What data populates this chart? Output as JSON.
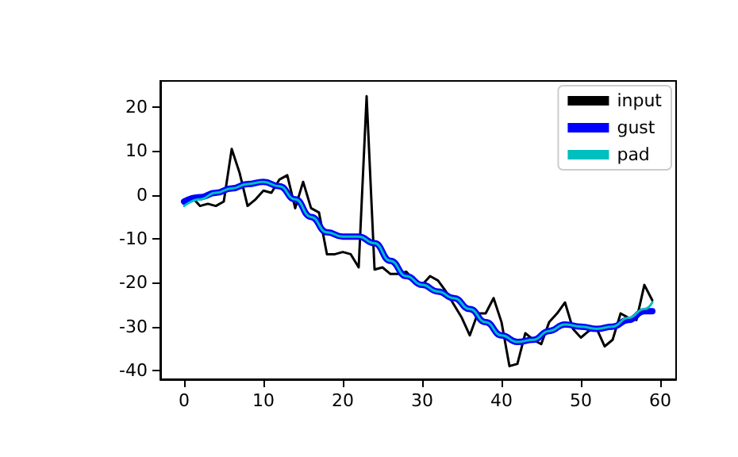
{
  "chart_data": {
    "type": "line",
    "x": [
      0,
      1,
      2,
      3,
      4,
      5,
      6,
      7,
      8,
      9,
      10,
      11,
      12,
      13,
      14,
      15,
      16,
      17,
      18,
      19,
      20,
      21,
      22,
      23,
      24,
      25,
      26,
      27,
      28,
      29,
      30,
      31,
      32,
      33,
      34,
      35,
      36,
      37,
      38,
      39,
      40,
      41,
      42,
      43,
      44,
      45,
      46,
      47,
      48,
      49,
      50,
      51,
      52,
      53,
      54,
      55,
      56,
      57,
      58,
      59
    ],
    "series": [
      {
        "name": "input",
        "color": "#000000",
        "values": [
          -1.5,
          -0.5,
          -2.5,
          -2,
          -2.5,
          -1.5,
          10.5,
          5,
          -2.5,
          -1,
          1,
          0.5,
          3.5,
          4.5,
          -3,
          3,
          -3,
          -4,
          -13.5,
          -13.5,
          -13,
          -13.5,
          -16.5,
          22.5,
          -17,
          -16.5,
          -18,
          -18,
          -17.5,
          -19.5,
          -20.5,
          -18.5,
          -19.5,
          -22,
          -25,
          -28,
          -32,
          -27,
          -27,
          -23.5,
          -29,
          -39,
          -38.5,
          -31.5,
          -33,
          -34,
          -29,
          -27,
          -24.5,
          -30.5,
          -32.5,
          -31,
          -30.5,
          -34.5,
          -33,
          -27,
          -28,
          -28.5,
          -20.5,
          -24
        ]
      },
      {
        "name": "gust",
        "color": "#0000ff",
        "x": [
          0,
          2,
          4,
          6,
          8,
          10,
          12,
          14,
          16,
          18,
          20,
          22,
          24,
          26,
          28,
          30,
          32,
          34,
          36,
          38,
          40,
          42,
          44,
          46,
          48,
          50,
          52,
          54,
          56,
          58,
          59
        ],
        "values": [
          -1.5,
          -0.5,
          0.5,
          1.5,
          2.5,
          3,
          2,
          -1,
          -5,
          -8.5,
          -9.5,
          -9.5,
          -11,
          -15,
          -18.5,
          -20.5,
          -22,
          -23.5,
          -26,
          -29,
          -32,
          -33.5,
          -33,
          -31,
          -29.5,
          -30,
          -30.5,
          -30,
          -28.5,
          -26.5,
          -26.5
        ]
      },
      {
        "name": "pad",
        "color": "#00bfbf",
        "x": [
          0,
          2,
          4,
          6,
          8,
          10,
          12,
          14,
          16,
          18,
          20,
          22,
          24,
          26,
          28,
          30,
          32,
          34,
          36,
          38,
          40,
          42,
          44,
          46,
          48,
          50,
          52,
          54,
          56,
          58,
          59
        ],
        "values": [
          -2.5,
          -1,
          0.5,
          1.5,
          2.5,
          3,
          2,
          -1,
          -5,
          -8.5,
          -9.5,
          -9.5,
          -11,
          -15,
          -18.5,
          -20.5,
          -22,
          -23.5,
          -26,
          -29,
          -32,
          -33.5,
          -33,
          -31,
          -29.5,
          -30,
          -30.5,
          -30,
          -28,
          -26,
          -24.5
        ]
      }
    ],
    "xlim": [
      -3,
      62
    ],
    "ylim": [
      -42,
      26
    ],
    "xticks": [
      0,
      10,
      20,
      30,
      40,
      50,
      60
    ],
    "yticks": [
      -40,
      -30,
      -20,
      -10,
      0,
      10,
      20
    ],
    "grid": false,
    "legend": "top right",
    "marker": "none",
    "line_style": "solid"
  }
}
